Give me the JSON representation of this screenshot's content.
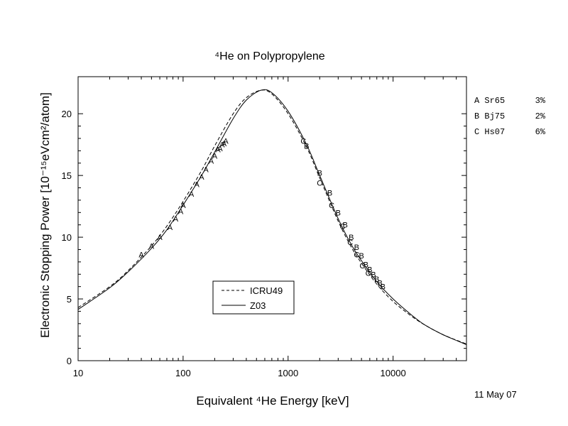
{
  "chart_data": {
    "type": "line",
    "title": "⁴He on Polypropylene",
    "xlabel": "Equivalent ⁴He Energy [keV]",
    "ylabel": "Electronic Stopping Power [10⁻¹⁵eVcm²/atom]",
    "x_scale": "log",
    "xlim": [
      10,
      50000
    ],
    "ylim": [
      0,
      23
    ],
    "x_ticks": [
      10,
      100,
      1000,
      10000
    ],
    "x_tick_labels": [
      "10",
      "100",
      "1000",
      "10000"
    ],
    "y_ticks": [
      0,
      5,
      10,
      15,
      20
    ],
    "y_tick_labels": [
      "0",
      "5",
      "10",
      "15",
      "20"
    ],
    "grid": false,
    "legend": {
      "placement": "lower-center",
      "entries": [
        {
          "label": "ICRU49",
          "style": "dashed"
        },
        {
          "label": "Z03",
          "style": "solid"
        }
      ]
    },
    "series": [
      {
        "name": "ICRU49",
        "style": "dashed",
        "x": [
          10,
          20,
          30,
          50,
          70,
          100,
          150,
          200,
          300,
          400,
          550,
          700,
          1000,
          1500,
          2000,
          3000,
          4000,
          5000,
          7000,
          10000,
          15000,
          20000,
          30000,
          50000
        ],
        "y": [
          4.3,
          6.0,
          7.3,
          9.3,
          10.9,
          12.9,
          15.4,
          17.4,
          20.0,
          21.3,
          21.9,
          21.6,
          20.0,
          17.3,
          14.8,
          11.3,
          9.2,
          7.9,
          6.2,
          4.8,
          3.6,
          2.9,
          2.1,
          1.35
        ]
      },
      {
        "name": "Z03",
        "style": "solid",
        "x": [
          10,
          20,
          30,
          50,
          70,
          100,
          150,
          200,
          300,
          400,
          550,
          700,
          1000,
          1500,
          2000,
          3000,
          4000,
          5000,
          7000,
          10000,
          15000,
          20000,
          30000,
          50000
        ],
        "y": [
          4.15,
          5.9,
          7.2,
          9.1,
          10.6,
          12.6,
          15.0,
          16.9,
          19.6,
          21.1,
          21.9,
          21.7,
          20.2,
          17.5,
          15.0,
          11.5,
          9.4,
          8.1,
          6.4,
          5.0,
          3.7,
          2.9,
          2.1,
          1.3
        ]
      }
    ],
    "data_points": {
      "A": {
        "name": "Sr65",
        "x": [
          40,
          50,
          60,
          75,
          85,
          95,
          100,
          120,
          135,
          150,
          165,
          185,
          200,
          215,
          225,
          235,
          245,
          255
        ],
        "y": [
          8.6,
          9.3,
          10.0,
          10.8,
          11.5,
          12.1,
          12.6,
          13.5,
          14.3,
          14.9,
          15.5,
          16.2,
          16.6,
          17.1,
          17.2,
          17.5,
          17.6,
          17.8
        ]
      },
      "B": {
        "name": "Bj75",
        "x": [
          1500,
          2000,
          2500,
          3000,
          3500,
          4000,
          4500,
          5000,
          5500,
          6000,
          6500,
          7000,
          7500,
          8000
        ],
        "y": [
          17.4,
          15.2,
          13.6,
          12.0,
          11.0,
          10.0,
          9.2,
          8.5,
          7.8,
          7.4,
          7.0,
          6.6,
          6.3,
          6.0
        ]
      },
      "C": {
        "name": "Hs07",
        "x": [
          1400,
          2000,
          2600,
          3300,
          3900,
          4500,
          5100,
          5800
        ],
        "y": [
          17.8,
          14.4,
          12.6,
          10.9,
          9.6,
          8.6,
          7.7,
          7.1
        ]
      }
    }
  },
  "side_legend": [
    {
      "letter": "A",
      "ref": "Sr65",
      "pct": "3%"
    },
    {
      "letter": "B",
      "ref": "Bj75",
      "pct": "2%"
    },
    {
      "letter": "C",
      "ref": "Hs07",
      "pct": "6%"
    }
  ],
  "date_label": "11 May 07"
}
